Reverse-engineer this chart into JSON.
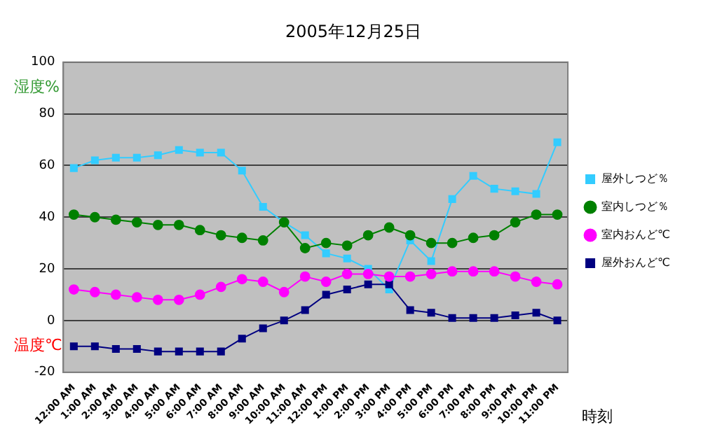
{
  "chart_data": {
    "type": "line",
    "title": "2005年12月25日",
    "ylabel": "湿度%",
    "xlabel": "時刻",
    "annotations": [
      "温度℃"
    ],
    "categories": [
      "12:00 AM",
      "1:00 AM",
      "2:00 AM",
      "3:00 AM",
      "4:00 AM",
      "5:00 AM",
      "6:00 AM",
      "7:00 AM",
      "8:00 AM",
      "9:00 AM",
      "10:00 AM",
      "11:00 AM",
      "12:00 PM",
      "1:00 PM",
      "2:00 PM",
      "3:00 PM",
      "4:00 PM",
      "5:00 PM",
      "6:00 PM",
      "7:00 PM",
      "8:00 PM",
      "9:00 PM",
      "10:00 PM",
      "11:00 PM"
    ],
    "series": [
      {
        "name": "屋外しつど％",
        "color": "#33ccff",
        "marker": "square",
        "values": [
          59,
          62,
          63,
          63,
          64,
          66,
          65,
          65,
          58,
          44,
          38,
          33,
          26,
          24,
          20,
          12,
          31,
          23,
          47,
          56,
          51,
          50,
          49,
          69
        ]
      },
      {
        "name": "室内しつど％",
        "color": "#008000",
        "marker": "circle",
        "values": [
          41,
          40,
          39,
          38,
          37,
          37,
          35,
          33,
          32,
          31,
          38,
          28,
          30,
          29,
          33,
          36,
          33,
          30,
          30,
          32,
          33,
          38,
          41,
          41
        ]
      },
      {
        "name": "室内おんど℃",
        "color": "#ff00ff",
        "marker": "circle",
        "values": [
          12,
          11,
          10,
          9,
          8,
          8,
          10,
          13,
          16,
          15,
          11,
          17,
          15,
          18,
          18,
          17,
          17,
          18,
          19,
          19,
          19,
          17,
          15,
          14
        ]
      },
      {
        "name": "屋外おんど℃",
        "color": "#000080",
        "marker": "square",
        "values": [
          -10,
          -10,
          -11,
          -11,
          -12,
          -12,
          -12,
          -12,
          -7,
          -3,
          0,
          4,
          10,
          12,
          14,
          14,
          4,
          3,
          1,
          1,
          1,
          2,
          3,
          0
        ]
      }
    ],
    "ylim": [
      -20,
      100
    ],
    "yticks": [
      -20,
      0,
      20,
      40,
      60,
      80,
      100
    ],
    "grid": "y",
    "legend": "right"
  }
}
